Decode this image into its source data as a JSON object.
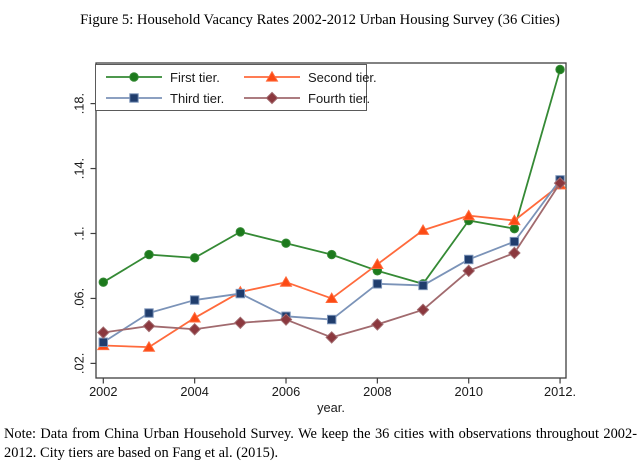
{
  "figure": {
    "title": "Figure 5:  Household Vacancy Rates 2002-2012 Urban Housing Survey (36 Cities)",
    "note": "Note: Data from China Urban Household Survey.  We keep the 36 cities with observations throughout 2002-2012.  City tiers are based on Fang et al. (2015)."
  },
  "chart_data": {
    "type": "line",
    "x": [
      2002,
      2003,
      2004,
      2005,
      2006,
      2007,
      2008,
      2009,
      2010,
      2011,
      2012
    ],
    "series": [
      {
        "name": "First tier.",
        "marker": "circle",
        "color": "#358a35",
        "marker_color": "#1d7a1d",
        "values": [
          0.07,
          0.087,
          0.085,
          0.101,
          0.094,
          0.087,
          0.077,
          0.069,
          0.108,
          0.103,
          0.201
        ]
      },
      {
        "name": "Second tier.",
        "marker": "triangle",
        "color": "#ff6a3c",
        "marker_color": "#fc4a14",
        "values": [
          0.031,
          0.03,
          0.048,
          0.064,
          0.07,
          0.06,
          0.081,
          0.102,
          0.111,
          0.108,
          0.13
        ]
      },
      {
        "name": "Third tier.",
        "marker": "square",
        "color": "#7b93b8",
        "marker_color": "#203d6d",
        "values": [
          0.033,
          0.051,
          0.059,
          0.063,
          0.049,
          0.047,
          0.069,
          0.068,
          0.084,
          0.095,
          0.133
        ]
      },
      {
        "name": "Fourth tier.",
        "marker": "diamond",
        "color": "#a16a6e",
        "marker_color": "#8b383e",
        "values": [
          0.039,
          0.043,
          0.041,
          0.045,
          0.047,
          0.036,
          0.044,
          0.053,
          0.077,
          0.088,
          0.131
        ]
      }
    ],
    "xlabel": "year.",
    "ylabel": "",
    "x_ticks": [
      2002,
      2004,
      2006,
      2008,
      2010,
      2012
    ],
    "x_tick_labels": [
      "2002",
      "2004",
      "2006",
      "2008",
      "2010",
      "2012."
    ],
    "y_ticks": [
      0.02,
      0.06,
      0.1,
      0.14,
      0.18
    ],
    "y_tick_labels": [
      ".02.",
      ".06.",
      ".1.",
      ".14.",
      ".18."
    ],
    "xlim": [
      2001.84,
      2012.13
    ],
    "ylim": [
      0.011,
      0.205
    ],
    "grid": false,
    "legend_position": "top-left-inside",
    "legend_entries": [
      "First tier.",
      "Second tier.",
      "Third tier.",
      "Fourth tier."
    ]
  },
  "colors": {
    "frame": "#3f3f3f",
    "tick_text": "#1a1a1a",
    "background": "#ffffff"
  }
}
